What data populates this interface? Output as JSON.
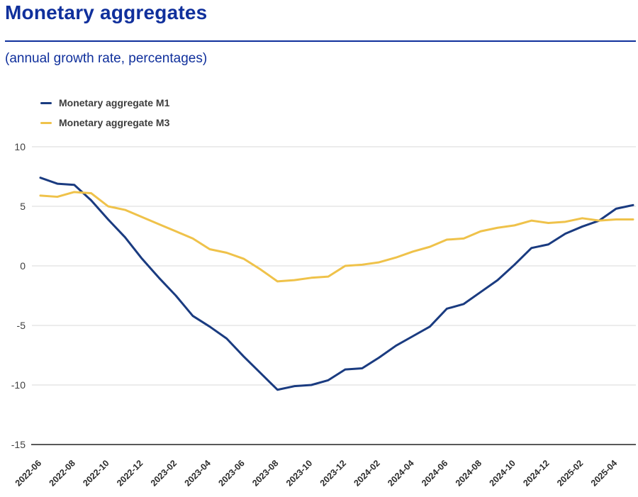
{
  "page": {
    "title": "Monetary aggregates",
    "subtitle": "(annual growth rate, percentages)"
  },
  "colors": {
    "heading_blue": "#10309c",
    "m1_line": "#1a3b80",
    "m3_line": "#efc24a",
    "grid_line": "#d9d9d9",
    "axis_line": "#595959",
    "y_tick_text": "#3f3f3f",
    "x_tick_text": "#2b2b2b",
    "legend_text": "#3d3d3d"
  },
  "chart_data": {
    "type": "line",
    "title": "Monetary aggregates",
    "subtitle": "(annual growth rate, percentages)",
    "grid": true,
    "legend_position": "top-left",
    "ylim": [
      -15,
      10
    ],
    "y_ticks": [
      10,
      5,
      0,
      -5,
      -10,
      -15
    ],
    "x": [
      "2022-06",
      "2022-07",
      "2022-08",
      "2022-09",
      "2022-10",
      "2022-11",
      "2022-12",
      "2023-01",
      "2023-02",
      "2023-03",
      "2023-04",
      "2023-05",
      "2023-06",
      "2023-07",
      "2023-08",
      "2023-09",
      "2023-10",
      "2023-11",
      "2023-12",
      "2024-01",
      "2024-02",
      "2024-03",
      "2024-04",
      "2024-05",
      "2024-06",
      "2024-07",
      "2024-08",
      "2024-09",
      "2024-10",
      "2024-11",
      "2024-12",
      "2025-01",
      "2025-02",
      "2025-03",
      "2025-04",
      "2025-05"
    ],
    "x_tick_labels": [
      "2022-06",
      "2022-08",
      "2022-10",
      "2022-12",
      "2023-02",
      "2023-04",
      "2023-06",
      "2023-08",
      "2023-10",
      "2023-12",
      "2024-02",
      "2024-04",
      "2024-06",
      "2024-08",
      "2024-10",
      "2024-12",
      "2025-02",
      "2025-04"
    ],
    "series": [
      {
        "name": "Monetary aggregate M1",
        "color": "#1a3b80",
        "values": [
          7.4,
          6.9,
          6.8,
          5.5,
          3.9,
          2.4,
          0.6,
          -1.0,
          -2.5,
          -4.2,
          -5.1,
          -6.1,
          -7.6,
          -9.0,
          -10.4,
          -10.1,
          -10.0,
          -9.6,
          -8.7,
          -8.6,
          -7.7,
          -6.7,
          -5.9,
          -5.1,
          -3.6,
          -3.2,
          -2.2,
          -1.2,
          0.1,
          1.5,
          1.8,
          2.7,
          3.3,
          3.8,
          4.8,
          5.1
        ]
      },
      {
        "name": "Monetary aggregate M3",
        "color": "#efc24a",
        "values": [
          5.9,
          5.8,
          6.2,
          6.1,
          5.0,
          4.7,
          4.1,
          3.5,
          2.9,
          2.3,
          1.4,
          1.1,
          0.6,
          -0.3,
          -1.3,
          -1.2,
          -1.0,
          -0.9,
          0.0,
          0.1,
          0.3,
          0.7,
          1.2,
          1.6,
          2.2,
          2.3,
          2.9,
          3.2,
          3.4,
          3.8,
          3.6,
          3.7,
          4.0,
          3.8,
          3.9,
          3.9
        ]
      }
    ]
  }
}
